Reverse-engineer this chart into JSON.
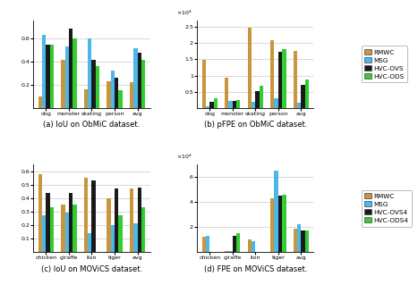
{
  "panel_a": {
    "caption": "(a) IoU on ObMiC dataset.",
    "categories": [
      "dog",
      "monster",
      "skating",
      "person",
      "avg"
    ],
    "series": {
      "RMWC": [
        0.1,
        0.41,
        0.16,
        0.23,
        0.22
      ],
      "MSG": [
        0.63,
        0.53,
        0.6,
        0.32,
        0.51
      ],
      "HVC-OVS": [
        0.54,
        0.68,
        0.41,
        0.26,
        0.47
      ],
      "HVC-ODS": [
        0.54,
        0.6,
        0.36,
        0.15,
        0.41
      ]
    },
    "ylim": [
      0,
      0.75
    ],
    "yticks": [
      0.2,
      0.4,
      0.6
    ]
  },
  "panel_b": {
    "caption": "(b) pFPE on ObMiC dataset.",
    "categories": [
      "dog",
      "monster",
      "skating",
      "person",
      "avg"
    ],
    "series": {
      "RMWC": [
        14800,
        9400,
        24700,
        20800,
        17600
      ],
      "MSG": [
        600,
        2200,
        1900,
        3100,
        1700
      ],
      "HVC-OVS": [
        1800,
        2200,
        5200,
        17200,
        7000
      ],
      "HVC-ODS": [
        3000,
        2300,
        6700,
        18200,
        8700
      ]
    },
    "ylim": [
      0,
      27000
    ],
    "yticks": [
      5000,
      10000,
      15000,
      20000,
      25000
    ],
    "yticklabels": [
      "0.5",
      "1",
      "1.5",
      "2",
      "2.5"
    ],
    "sci_label": "x10^4"
  },
  "panel_c": {
    "caption": "(c) IoU on MOViCS dataset.",
    "categories": [
      "chicken",
      "giraffe",
      "lion",
      "tiger",
      "avg"
    ],
    "series": {
      "RMWC": [
        0.58,
        0.35,
        0.55,
        0.4,
        0.47
      ],
      "MSG": [
        0.27,
        0.29,
        0.14,
        0.2,
        0.21
      ],
      "HVC-OVS4": [
        0.44,
        0.44,
        0.53,
        0.47,
        0.48
      ],
      "HVC-ODS4": [
        0.33,
        0.35,
        0.0,
        0.27,
        0.33
      ]
    },
    "ylim": [
      0,
      0.65
    ],
    "yticks": [
      0.1,
      0.2,
      0.3,
      0.4,
      0.5,
      0.6
    ]
  },
  "panel_d": {
    "caption": "(d) FPE on MOViCS dataset.",
    "categories": [
      "chicken",
      "giraffe",
      "lion",
      "tiger",
      "avg"
    ],
    "series": {
      "RMWC": [
        12000,
        1000,
        10000,
        43000,
        18500
      ],
      "MSG": [
        13000,
        800,
        8500,
        65000,
        22000
      ],
      "HVC-OVS4": [
        0,
        13000,
        0,
        45000,
        17000
      ],
      "HVC-ODS4": [
        0,
        15000,
        0,
        46000,
        17500
      ]
    },
    "ylim": [
      0,
      70000
    ],
    "yticks": [
      20000,
      40000,
      60000
    ],
    "yticklabels": [
      "2",
      "4",
      "6"
    ],
    "sci_label": "x10^4"
  },
  "colors": {
    "RMWC": "#c8963c",
    "MSG": "#4db8e8",
    "HVC-OVS": "#1a1a1a",
    "HVC-ODS": "#33cc33",
    "HVC-OVS4": "#1a1a1a",
    "HVC-ODS4": "#33cc33"
  },
  "legend_top": [
    "RMWC",
    "MSG",
    "HVC-OVS",
    "HVC-ODS"
  ],
  "legend_bottom": [
    "RMWC",
    "MSG",
    "HVC-OVS4",
    "HVC-ODS4"
  ],
  "bar_width": 0.17,
  "figsize": [
    4.67,
    3.28
  ],
  "dpi": 100
}
